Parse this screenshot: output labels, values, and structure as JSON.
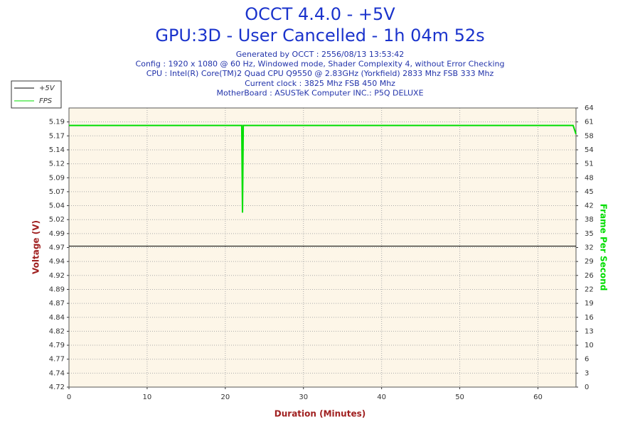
{
  "chart_data": {
    "type": "line",
    "title": "OCCT 4.4.0 - +5V",
    "subtitle": "GPU:3D - User Cancelled - 1h 04m 52s",
    "info_lines": [
      "Generated by OCCT : 2556/08/13 13:53:42",
      "Config : 1920 x 1080 @ 60 Hz, Windowed mode, Shader Complexity 4, without Error Checking",
      "CPU : Intel(R) Core(TM)2 Quad CPU Q9550 @ 2.83GHz (Yorkfield) 2833 Mhz FSB 333 Mhz",
      "Current clock : 3825 Mhz FSB 450 Mhz",
      "MotherBoard : ASUSTeK Computer INC.: P5Q DELUXE"
    ],
    "xlabel": "Duration (Minutes)",
    "ylabel": "Voltage (V)",
    "y2label": "Frame Per Second",
    "xlim": [
      0,
      64.87
    ],
    "xticks": [
      0,
      10,
      20,
      30,
      40,
      50,
      60
    ],
    "ylim": [
      4.72,
      5.215
    ],
    "yticks": [
      4.72,
      {
        "value": 4.74475,
        "label": "4.74"
      },
      {
        "value": 4.7695,
        "label": "4.77"
      },
      {
        "value": 4.79425,
        "label": "4.79"
      },
      {
        "value": 4.819,
        "label": "4.82"
      },
      {
        "value": 4.84375,
        "label": "4.84"
      },
      {
        "value": 4.8685,
        "label": "4.87"
      },
      {
        "value": 4.89325,
        "label": "4.89"
      },
      {
        "value": 4.918,
        "label": "4.92"
      },
      {
        "value": 4.94275,
        "label": "4.94"
      },
      {
        "value": 4.9675,
        "label": "4.97"
      },
      {
        "value": 4.99225,
        "label": "4.99"
      },
      {
        "value": 5.017,
        "label": "5.02"
      },
      {
        "value": 5.04175,
        "label": "5.04"
      },
      {
        "value": 5.0665,
        "label": "5.07"
      },
      {
        "value": 5.09125,
        "label": "5.09"
      },
      {
        "value": 5.116,
        "label": "5.12"
      },
      {
        "value": 5.14075,
        "label": "5.14"
      },
      {
        "value": 5.1655,
        "label": "5.17"
      },
      {
        "value": 5.19025,
        "label": "5.19"
      }
    ],
    "y2lim": [
      0,
      64
    ],
    "y2ticks": [
      0,
      {
        "value": 3.2,
        "label": "3"
      },
      {
        "value": 6.4,
        "label": "6"
      },
      {
        "value": 9.6,
        "label": "10"
      },
      {
        "value": 12.8,
        "label": "13"
      },
      16,
      {
        "value": 19.2,
        "label": "19"
      },
      {
        "value": 22.4,
        "label": "22"
      },
      {
        "value": 25.6,
        "label": "26"
      },
      {
        "value": 28.8,
        "label": "29"
      },
      32,
      {
        "value": 35.2,
        "label": "35"
      },
      {
        "value": 38.4,
        "label": "38"
      },
      {
        "value": 41.6,
        "label": "42"
      },
      {
        "value": 44.8,
        "label": "45"
      },
      48,
      {
        "value": 51.2,
        "label": "51"
      },
      {
        "value": 54.4,
        "label": "54"
      },
      {
        "value": 57.6,
        "label": "58"
      },
      {
        "value": 60.8,
        "label": "61"
      },
      64
    ],
    "grid": true,
    "legend": "top-left",
    "x": [
      0,
      22.1,
      22.2,
      22.3,
      64.5,
      64.87
    ],
    "series": [
      {
        "name": "+5V",
        "color": "#000000",
        "values": [
          4.97,
          4.97,
          4.97,
          4.97,
          4.97,
          4.97
        ]
      },
      {
        "name": "FPS",
        "color": "#00dd00",
        "axis": "y2",
        "values": [
          60,
          60,
          40,
          60,
          60,
          58
        ]
      }
    ]
  }
}
